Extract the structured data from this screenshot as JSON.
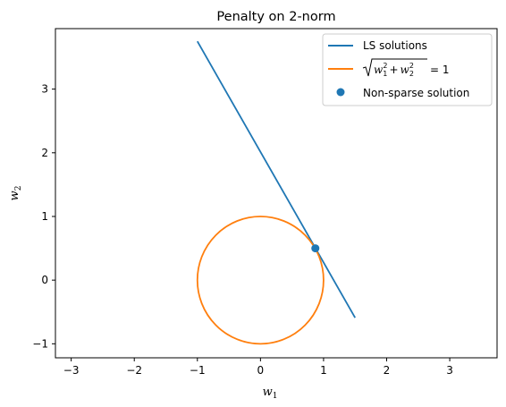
{
  "chart_data": {
    "type": "line",
    "title": "Penalty on 2-norm",
    "xlabel": {
      "base": "w",
      "sub": "1"
    },
    "ylabel": {
      "base": "w",
      "sub": "2"
    },
    "xlim": [
      -3.25,
      3.75
    ],
    "ylim": [
      -1.22,
      3.95
    ],
    "xticks": [
      -3,
      -2,
      -1,
      0,
      1,
      2,
      3
    ],
    "yticks": [
      -1,
      0,
      1,
      2,
      3
    ],
    "grid": false,
    "legend_position": "upper right",
    "colors": {
      "ls": "#1f77b4",
      "circle": "#ff7f0e",
      "point": "#1f77b4"
    },
    "series": [
      {
        "name": "LS solutions",
        "kind": "line",
        "x": [
          -1.0,
          1.5
        ],
        "y": [
          3.75,
          -0.59
        ]
      },
      {
        "name": "√(w1² + w2²) = 1",
        "kind": "circle",
        "center": [
          0,
          0
        ],
        "radius": 1
      },
      {
        "name": "Non-sparse solution",
        "kind": "point",
        "x": [
          0.87
        ],
        "y": [
          0.5
        ]
      }
    ],
    "legend": [
      {
        "label": "LS solutions",
        "kind": "line",
        "color_key": "ls"
      },
      {
        "label_parts": {
          "w": "w",
          "s1": "1",
          "s2": "2",
          "p": "2",
          "eq": "= 1"
        },
        "kind": "line",
        "color_key": "circle"
      },
      {
        "label": "Non-sparse solution",
        "kind": "point",
        "color_key": "point"
      }
    ]
  }
}
